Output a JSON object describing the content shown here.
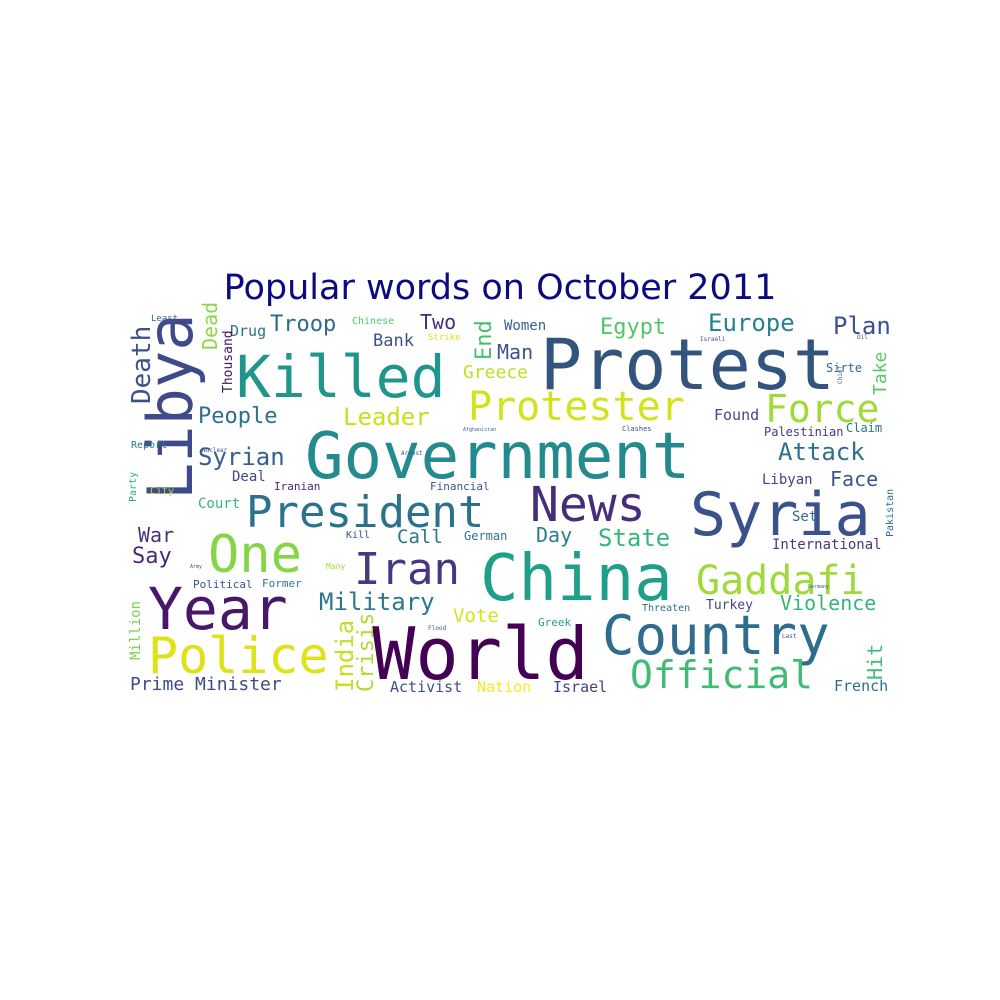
{
  "title": "Popular words on October 2011",
  "palette": "viridis",
  "words": [
    {
      "text": "Protest",
      "color": "#33547c"
    },
    {
      "text": "Government",
      "color": "#238a8d"
    },
    {
      "text": "World",
      "color": "#440154"
    },
    {
      "text": "China",
      "color": "#1f9e89"
    },
    {
      "text": "Killed",
      "color": "#20958c"
    },
    {
      "text": "Syria",
      "color": "#3b518b"
    },
    {
      "text": "News",
      "color": "#472c7a"
    },
    {
      "text": "Country",
      "color": "#2f6d8e"
    },
    {
      "text": "Year",
      "color": "#481769"
    },
    {
      "text": "One",
      "color": "#86d549"
    },
    {
      "text": "Libya",
      "color": "#3e4a89"
    },
    {
      "text": "President",
      "color": "#2c728e"
    },
    {
      "text": "Police",
      "color": "#dde318"
    },
    {
      "text": "Gaddafi",
      "color": "#9fda3a"
    },
    {
      "text": "Protester",
      "color": "#d2e21b"
    },
    {
      "text": "Iran",
      "color": "#453781"
    },
    {
      "text": "Force",
      "color": "#a0da39"
    },
    {
      "text": "Official",
      "color": "#3fbc73"
    },
    {
      "text": "Military",
      "color": "#2a788e"
    },
    {
      "text": "Europe",
      "color": "#25838e"
    },
    {
      "text": "Death",
      "color": "#3b528b"
    },
    {
      "text": "Attack",
      "color": "#2d708e"
    },
    {
      "text": "Syrian",
      "color": "#355f8d"
    },
    {
      "text": "People",
      "color": "#2e6e8e"
    },
    {
      "text": "Leader",
      "color": "#c8e020"
    },
    {
      "text": "State",
      "color": "#35b779"
    },
    {
      "text": "Plan",
      "color": "#3b528b"
    },
    {
      "text": "Troop",
      "color": "#31688e"
    },
    {
      "text": "Egypt",
      "color": "#52c569"
    },
    {
      "text": "Say",
      "color": "#482878"
    },
    {
      "text": "War",
      "color": "#46337e"
    },
    {
      "text": "Face",
      "color": "#39568c"
    },
    {
      "text": "India",
      "color": "#c2df23"
    },
    {
      "text": "Crisis",
      "color": "#addc30"
    },
    {
      "text": "Violence",
      "color": "#32b67a"
    },
    {
      "text": "Prime Minister",
      "color": "#3e4c8a"
    },
    {
      "text": "Dead",
      "color": "#8ed645"
    },
    {
      "text": "Man",
      "color": "#3a548c"
    },
    {
      "text": "End",
      "color": "#46c06f"
    },
    {
      "text": "Greece",
      "color": "#bddf26"
    },
    {
      "text": "Bank",
      "color": "#3b528b"
    },
    {
      "text": "Two",
      "color": "#472d7b"
    },
    {
      "text": "Vote",
      "color": "#d8e219"
    },
    {
      "text": "Call",
      "color": "#2a768e"
    },
    {
      "text": "Day",
      "color": "#277f8e"
    },
    {
      "text": "Hit",
      "color": "#40bd72"
    },
    {
      "text": "Take",
      "color": "#5cc863"
    },
    {
      "text": "Million",
      "color": "#7ad151"
    },
    {
      "text": "Activist",
      "color": "#3b528b"
    },
    {
      "text": "Nation",
      "color": "#fde725"
    },
    {
      "text": "Israel",
      "color": "#404387"
    },
    {
      "text": "French",
      "color": "#2d708e"
    },
    {
      "text": "Found",
      "color": "#3e4a89"
    },
    {
      "text": "Drug",
      "color": "#2c718e"
    },
    {
      "text": "Women",
      "color": "#33638d"
    },
    {
      "text": "Thousand",
      "color": "#440f5f"
    },
    {
      "text": "Deal",
      "color": "#3f4788"
    },
    {
      "text": "Court",
      "color": "#35b779"
    },
    {
      "text": "Set",
      "color": "#31688e"
    },
    {
      "text": "International",
      "color": "#443a83"
    },
    {
      "text": "Libyan",
      "color": "#414487"
    },
    {
      "text": "Turkey",
      "color": "#3e4989"
    },
    {
      "text": "Palestinian",
      "color": "#453882"
    },
    {
      "text": "Claim",
      "color": "#2b758e"
    },
    {
      "text": "Sirte",
      "color": "#31688e"
    },
    {
      "text": "Pakistan",
      "color": "#2e6f8e"
    },
    {
      "text": "German",
      "color": "#2b758e"
    },
    {
      "text": "Kill",
      "color": "#3b528b"
    },
    {
      "text": "Greek",
      "color": "#1fa188"
    },
    {
      "text": "Former",
      "color": "#2a788e"
    },
    {
      "text": "Political",
      "color": "#3b528b"
    },
    {
      "text": "Threaten",
      "color": "#2c718e"
    },
    {
      "text": "Iranian",
      "color": "#482576"
    },
    {
      "text": "Financial",
      "color": "#3b528b"
    },
    {
      "text": "Party",
      "color": "#29af7f"
    },
    {
      "text": "City",
      "color": "#b5de2b"
    },
    {
      "text": "Report",
      "color": "#2a788e"
    },
    {
      "text": "Chinese",
      "color": "#52c569"
    },
    {
      "text": "Strike",
      "color": "#d8e219"
    },
    {
      "text": "Least",
      "color": "#31688e"
    },
    {
      "text": "Many",
      "color": "#a0da39"
    },
    {
      "text": "Nuclear",
      "color": "#3b528b"
    },
    {
      "text": "Arrest",
      "color": "#3b528b"
    },
    {
      "text": "Israeli",
      "color": "#3b528b"
    },
    {
      "text": "Clashes",
      "color": "#3b528b"
    },
    {
      "text": "Afghanistan",
      "color": "#31688e"
    },
    {
      "text": "Flood",
      "color": "#3b528b"
    },
    {
      "text": "Last",
      "color": "#3b528b"
    },
    {
      "text": "Germany",
      "color": "#31688e"
    },
    {
      "text": "Army",
      "color": "#3b528b"
    },
    {
      "text": "Oil",
      "color": "#3b528b"
    },
    {
      "text": "Chief",
      "color": "#3b528b"
    }
  ]
}
